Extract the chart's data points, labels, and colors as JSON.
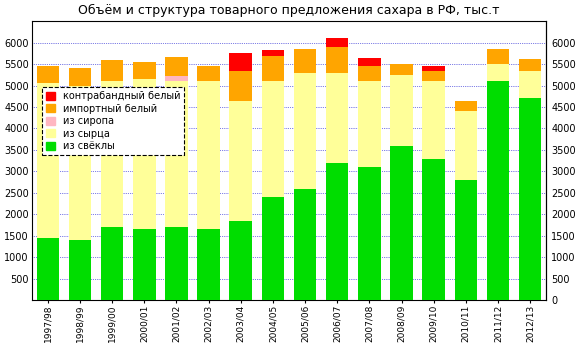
{
  "categories": [
    "1997/98",
    "1998/99",
    "1999/00",
    "2000/01",
    "2001/02",
    "2002/03",
    "2003/04",
    "2004/05",
    "2005/06",
    "2006/07",
    "2007/08",
    "2008/09",
    "2009/10",
    "2010/11",
    "2011/12",
    "2012/13"
  ],
  "svekla": [
    1450,
    1400,
    1700,
    1650,
    1700,
    1650,
    1850,
    2400,
    2600,
    3200,
    3100,
    3600,
    3300,
    2800,
    5100,
    4700
  ],
  "syrec": [
    3600,
    3600,
    3400,
    3500,
    3400,
    3450,
    2800,
    2700,
    2700,
    2100,
    2000,
    1650,
    1800,
    1600,
    400,
    650
  ],
  "sirop": [
    0,
    0,
    0,
    0,
    120,
    0,
    0,
    0,
    0,
    0,
    0,
    0,
    0,
    0,
    0,
    0
  ],
  "import": [
    400,
    400,
    500,
    400,
    450,
    350,
    700,
    600,
    550,
    600,
    350,
    250,
    250,
    250,
    350,
    280
  ],
  "kontrab": [
    0,
    0,
    0,
    0,
    0,
    0,
    400,
    130,
    0,
    200,
    200,
    0,
    100,
    0,
    0,
    0
  ],
  "title": "Объём и структура товарного предложения сахара в РФ, тыс.т",
  "legend_kontrab": "контрабандный белый",
  "legend_import": "импортный белый",
  "legend_sirop": "из сиропа",
  "legend_syrec": "из сырца",
  "legend_svekla": "из свёклы",
  "color_kontrab": "#ff0000",
  "color_import": "#ffa500",
  "color_sirop": "#ffb6c1",
  "color_syrec": "#ffff99",
  "color_svekla": "#00dd00",
  "ylim": [
    0,
    6500
  ],
  "yticks": [
    0,
    500,
    1000,
    1500,
    2000,
    2500,
    3000,
    3500,
    4000,
    4500,
    5000,
    5500,
    6000
  ],
  "bg_color": "#ffffff",
  "border_color": "#000000",
  "figw": 5.8,
  "figh": 3.46,
  "dpi": 100
}
